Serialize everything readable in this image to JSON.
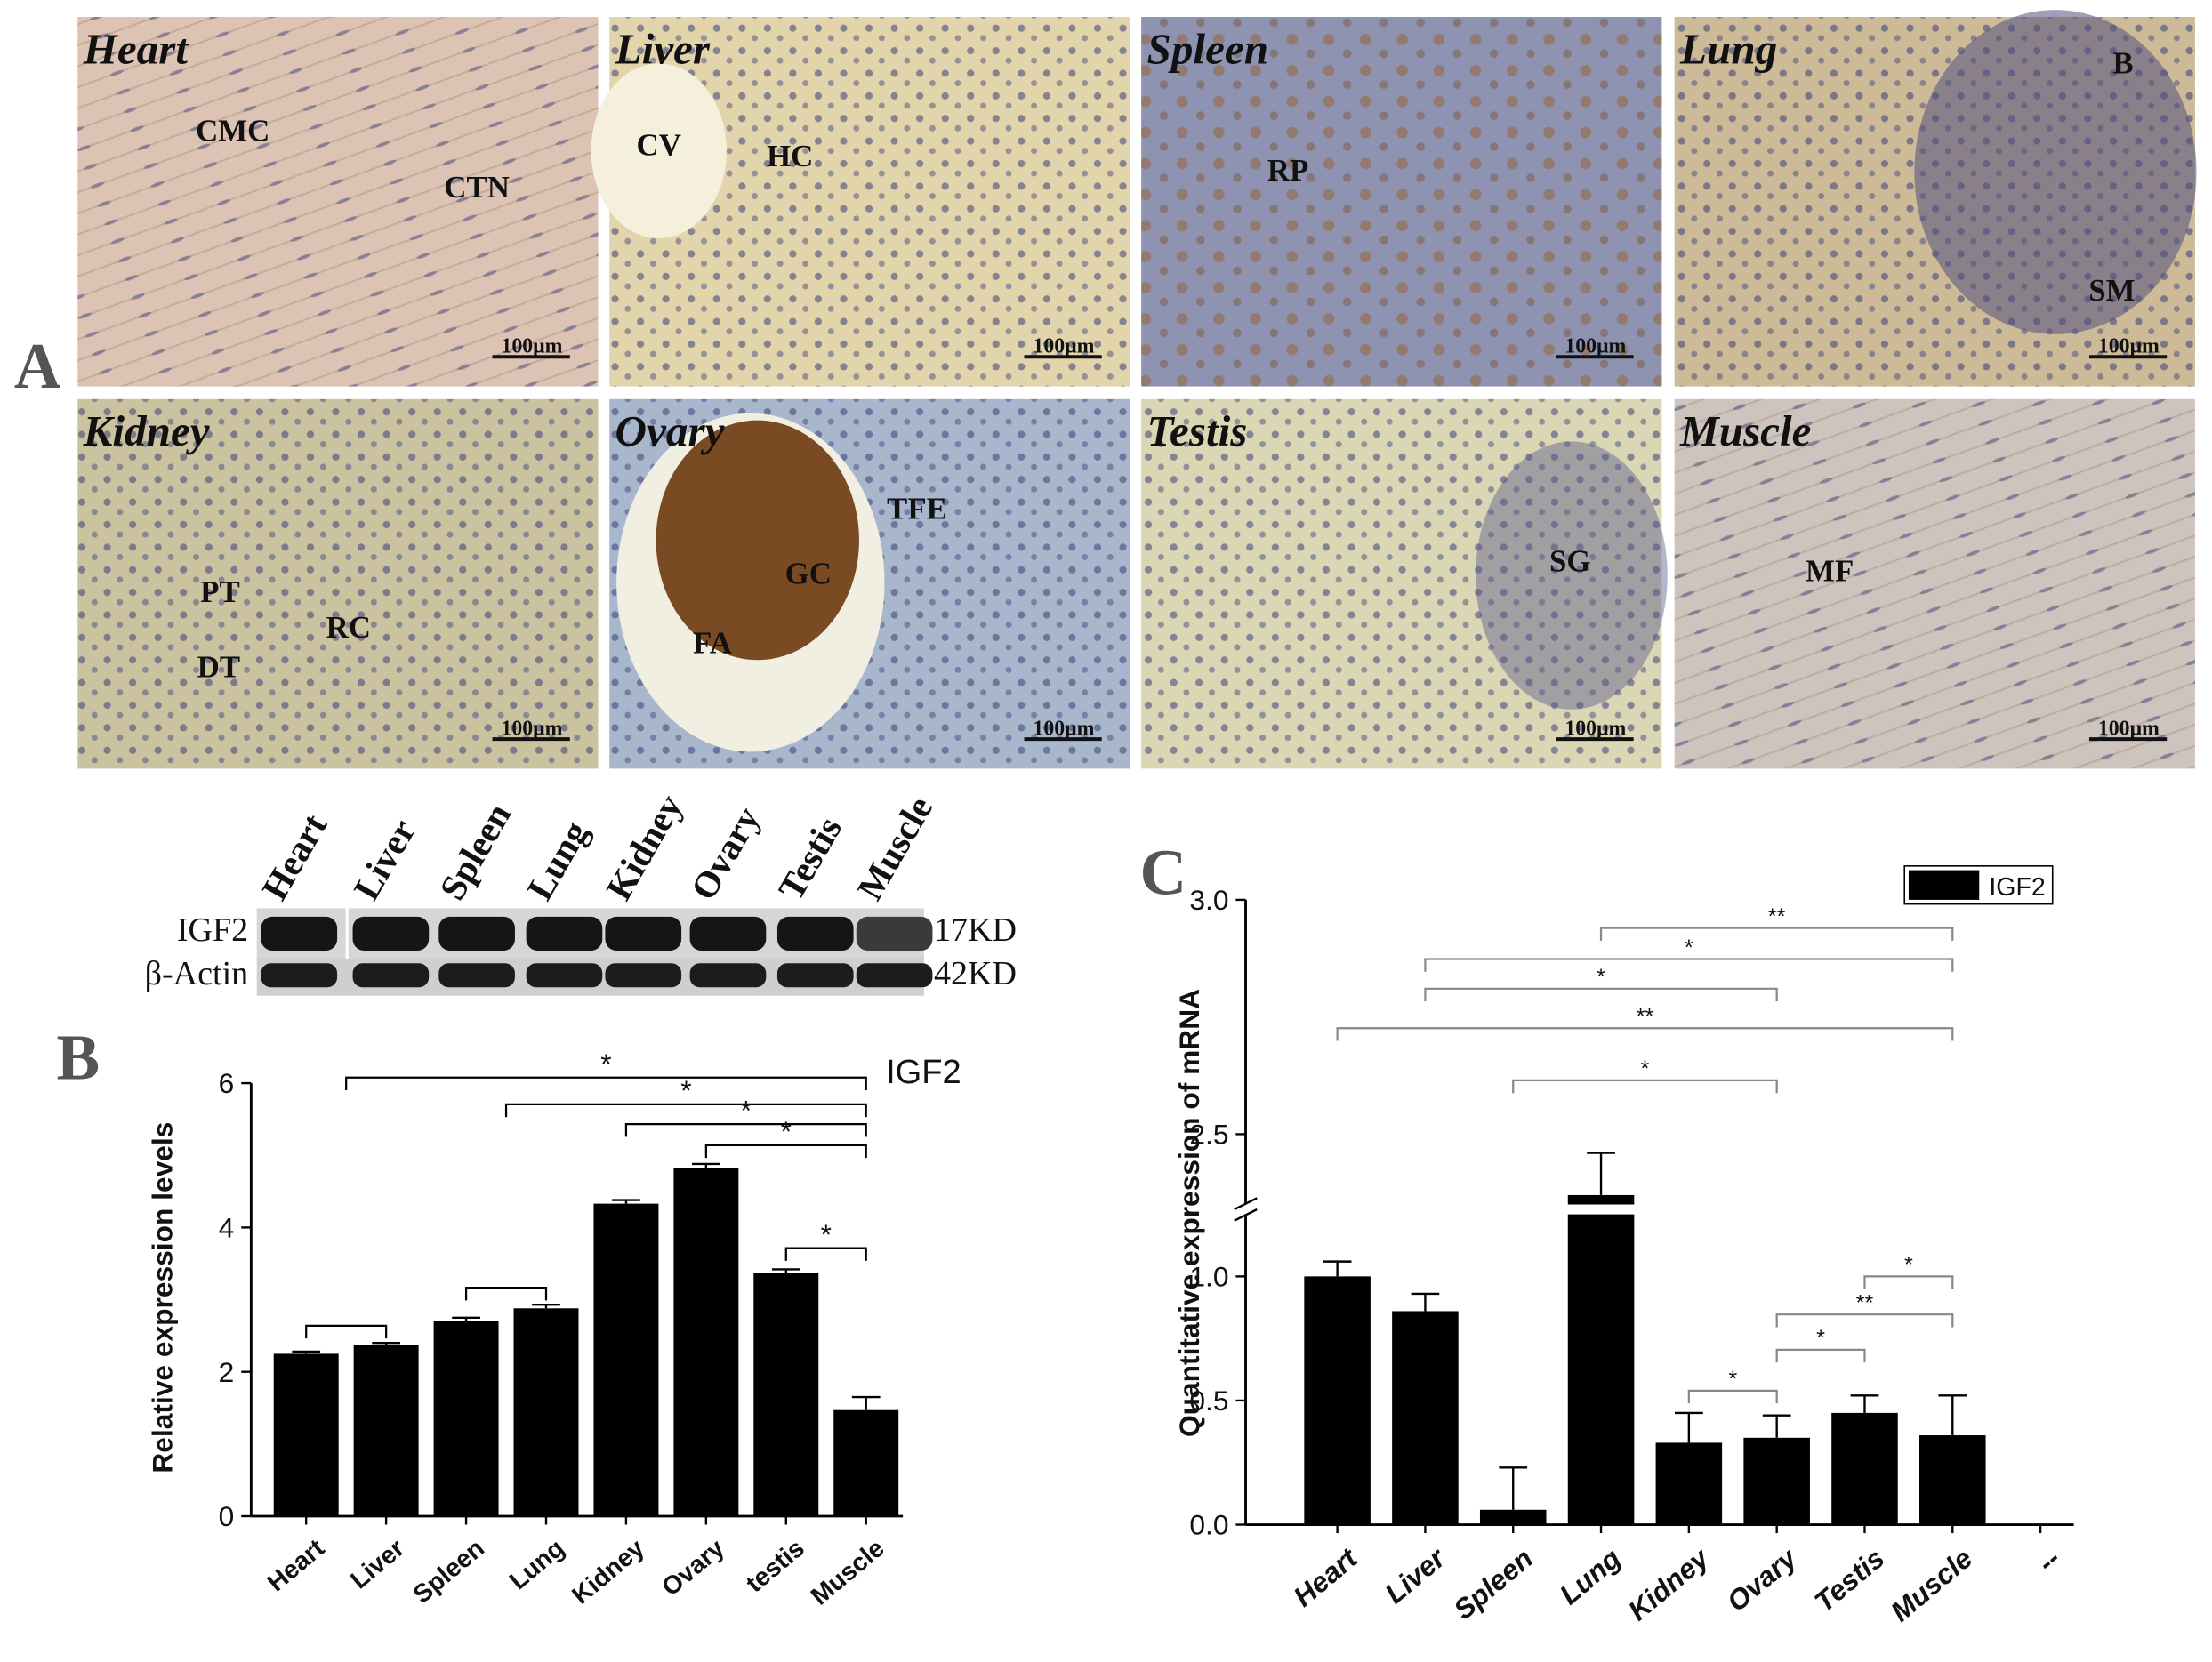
{
  "panel_a": {
    "letter": "A",
    "panels": [
      {
        "title": "Heart",
        "labels": [
          "CMC",
          "CTN"
        ],
        "scale_bar": "100μm"
      },
      {
        "title": "Liver",
        "labels": [
          "CV",
          "HC"
        ],
        "scale_bar": "100μm"
      },
      {
        "title": "Spleen",
        "labels": [
          "RP"
        ],
        "scale_bar": "100μm"
      },
      {
        "title": "Lung",
        "labels": [
          "B",
          "SM"
        ],
        "scale_bar": "100μm"
      },
      {
        "title": "Kidney",
        "labels": [
          "PT",
          "DT",
          "RC"
        ],
        "scale_bar": "100μm"
      },
      {
        "title": "Ovary",
        "labels": [
          "TFE",
          "GC",
          "FA"
        ],
        "scale_bar": "100μm"
      },
      {
        "title": "Testis",
        "labels": [
          "SG"
        ],
        "scale_bar": "100μm"
      },
      {
        "title": "Muscle",
        "labels": [
          "MF"
        ],
        "scale_bar": "100μm"
      }
    ]
  },
  "blot": {
    "lanes": [
      "Heart",
      "Liver",
      "Spleen",
      "Lung",
      "Kidney",
      "Ovary",
      "Testis",
      "Muscle"
    ],
    "rows": [
      {
        "name": "IGF2",
        "size": "17KD"
      },
      {
        "name": "β-Actin",
        "size": "42KD"
      }
    ]
  },
  "chart_data": [
    {
      "panel": "B",
      "type": "bar",
      "categories": [
        "Heart",
        "Liver",
        "Spleen",
        "Lung",
        "Kidney",
        "Ovary",
        "testis",
        "Muscle"
      ],
      "series": [
        {
          "name": "IGF2",
          "color": "#000000",
          "values": [
            2.25,
            2.37,
            2.7,
            2.88,
            4.33,
            4.83,
            3.37,
            1.47
          ],
          "errors": [
            0.03,
            0.03,
            0.05,
            0.05,
            0.05,
            0.05,
            0.05,
            0.18
          ]
        }
      ],
      "ylabel": "Relative expression levels",
      "ylim": [
        0,
        6
      ],
      "yticks": [
        0,
        2,
        4,
        6
      ],
      "brackets": [
        {
          "from": [
            "Heart"
          ],
          "to": [
            "Liver"
          ]
        },
        {
          "from": [
            "Spleen"
          ],
          "to": [
            "Lung"
          ]
        },
        {
          "from": [
            "Heart",
            "Liver"
          ],
          "to": [
            "Muscle"
          ],
          "label": "*"
        },
        {
          "from": [
            "Spleen",
            "Lung"
          ],
          "to": [
            "Muscle"
          ],
          "label": "*"
        },
        {
          "from": [
            "Kidney"
          ],
          "to": [
            "Muscle"
          ],
          "label": "*"
        },
        {
          "from": [
            "Ovary"
          ],
          "to": [
            "Muscle"
          ],
          "label": "*"
        },
        {
          "from": [
            "testis"
          ],
          "to": [
            "Muscle"
          ],
          "label": "*"
        }
      ]
    },
    {
      "panel": "C",
      "type": "bar",
      "categories": [
        "Heart",
        "Liver",
        "Spleen",
        "Lung",
        "Kidney",
        "Ovary",
        "Testis",
        "Muscle",
        "--"
      ],
      "series": [
        {
          "name": "IGF2",
          "color": "#000000",
          "values": [
            1.0,
            0.86,
            0.06,
            2.37,
            0.33,
            0.35,
            0.45,
            0.36,
            null
          ],
          "errors": [
            0.06,
            0.07,
            0.17,
            0.09,
            0.12,
            0.09,
            0.07,
            0.16,
            null
          ]
        }
      ],
      "ylabel": "Quantitative expression of mRNA",
      "ylim": [
        0,
        3.0
      ],
      "ybreak": [
        1.25,
        2.35
      ],
      "yticks": [
        {
          "value": 0,
          "label": "0.0"
        },
        0.5,
        {
          "value": 1,
          "label": "1.0"
        },
        2.5,
        {
          "value": 3,
          "label": "3.0"
        }
      ],
      "brackets": [
        {
          "from": [
            "Lung"
          ],
          "to": [
            "Muscle"
          ],
          "label": "**"
        },
        {
          "from": [
            "Liver"
          ],
          "to": [
            "Muscle"
          ],
          "label": "*"
        },
        {
          "from": [
            "Liver"
          ],
          "to": [
            "Ovary"
          ],
          "label": "*"
        },
        {
          "from": [
            "Heart"
          ],
          "to": [
            "Muscle"
          ],
          "label": "**"
        },
        {
          "from": [
            "Spleen"
          ],
          "to": [
            "Ovary"
          ],
          "label": "*"
        },
        {
          "from": [
            "Testis"
          ],
          "to": [
            "Muscle"
          ],
          "label": "*"
        },
        {
          "from": [
            "Ovary"
          ],
          "to": [
            "Muscle"
          ],
          "label": "**"
        },
        {
          "from": [
            "Ovary"
          ],
          "to": [
            "Testis"
          ],
          "label": "*"
        },
        {
          "from": [
            "Kidney"
          ],
          "to": [
            "Ovary"
          ],
          "label": "*"
        }
      ]
    }
  ]
}
